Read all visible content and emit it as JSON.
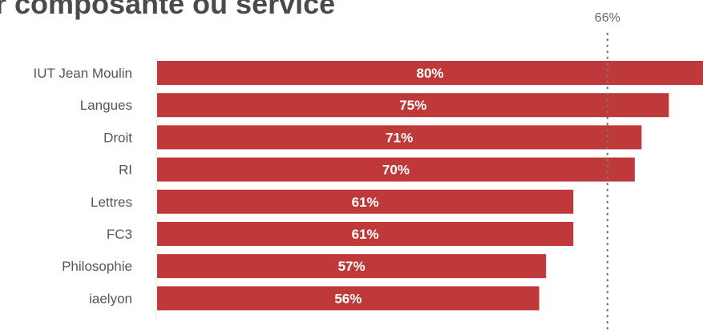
{
  "chart_data": {
    "type": "bar",
    "orientation": "horizontal",
    "title": "r composante ou service",
    "categories": [
      "IUT Jean Moulin",
      "Langues",
      "Droit",
      "RI",
      "Lettres",
      "FC3",
      "Philosophie",
      "iaelyon"
    ],
    "values": [
      80,
      75,
      71,
      70,
      61,
      61,
      57,
      56
    ],
    "value_labels": [
      "80%",
      "75%",
      "71%",
      "70%",
      "61%",
      "61%",
      "57%",
      "56%"
    ],
    "xlim": [
      0,
      80
    ],
    "reference_line": {
      "value": 66,
      "label": "66%"
    },
    "bar_color": "#c0393a",
    "grid": false,
    "legend": "none"
  }
}
